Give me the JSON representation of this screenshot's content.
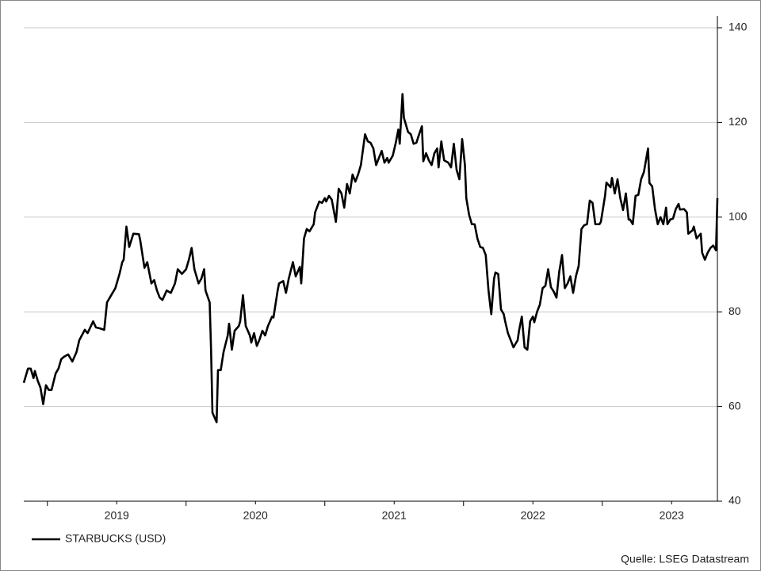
{
  "chart_data": {
    "type": "line",
    "source": "Quelle: LSEG Datastream",
    "legend": "bottom-left",
    "xlim": [
      2018.83,
      2023.83
    ],
    "xticks": [
      {
        "value": 2019.5,
        "label": "2019"
      },
      {
        "value": 2020.5,
        "label": "2020"
      },
      {
        "value": 2021.5,
        "label": "2021"
      },
      {
        "value": 2022.5,
        "label": "2022"
      },
      {
        "value": 2023.5,
        "label": "2023"
      }
    ],
    "ylim": [
      40,
      140
    ],
    "yticks": [
      40,
      60,
      80,
      100,
      120,
      140
    ],
    "grid": true,
    "x": [
      2018.83,
      2018.86,
      2018.88,
      2018.9,
      2018.91,
      2018.93,
      2018.95,
      2018.97,
      2018.99,
      2019.01,
      2019.03,
      2019.06,
      2019.08,
      2019.1,
      2019.12,
      2019.15,
      2019.18,
      2019.21,
      2019.23,
      2019.27,
      2019.29,
      2019.33,
      2019.35,
      2019.38,
      2019.41,
      2019.43,
      2019.46,
      2019.49,
      2019.52,
      2019.54,
      2019.55,
      2019.57,
      2019.59,
      2019.62,
      2019.66,
      2019.67,
      2019.7,
      2019.72,
      2019.75,
      2019.77,
      2019.79,
      2019.81,
      2019.83,
      2019.86,
      2019.89,
      2019.92,
      2019.94,
      2019.97,
      2020.0,
      2020.02,
      2020.04,
      2020.06,
      2020.09,
      2020.11,
      2020.13,
      2020.14,
      2020.17,
      2020.18,
      2020.19,
      2020.22,
      2020.23,
      2020.25,
      2020.27,
      2020.3,
      2020.31,
      2020.33,
      2020.35,
      2020.38,
      2020.39,
      2020.41,
      2020.43,
      2020.46,
      2020.47,
      2020.49,
      2020.51,
      2020.53,
      2020.55,
      2020.57,
      2020.59,
      2020.62,
      2020.63,
      2020.66,
      2020.67,
      2020.7,
      2020.72,
      2020.74,
      2020.77,
      2020.79,
      2020.82,
      2020.83,
      2020.85,
      2020.87,
      2020.89,
      2020.92,
      2020.93,
      2020.96,
      2020.98,
      2021.0,
      2021.01,
      2021.03,
      2021.05,
      2021.08,
      2021.1,
      2021.12,
      2021.14,
      2021.16,
      2021.18,
      2021.2,
      2021.22,
      2021.24,
      2021.26,
      2021.29,
      2021.31,
      2021.33,
      2021.35,
      2021.37,
      2021.39,
      2021.41,
      2021.43,
      2021.45,
      2021.46,
      2021.49,
      2021.51,
      2021.53,
      2021.54,
      2021.56,
      2021.57,
      2021.6,
      2021.62,
      2021.64,
      2021.66,
      2021.68,
      2021.7,
      2021.71,
      2021.73,
      2021.75,
      2021.77,
      2021.79,
      2021.81,
      2021.82,
      2021.84,
      2021.86,
      2021.89,
      2021.91,
      2021.93,
      2021.95,
      2021.97,
      2021.99,
      2022.01,
      2022.02,
      2022.04,
      2022.06,
      2022.08,
      2022.1,
      2022.12,
      2022.14,
      2022.16,
      2022.18,
      2022.2,
      2022.22,
      2022.23,
      2022.25,
      2022.27,
      2022.29,
      2022.3,
      2022.32,
      2022.34,
      2022.36,
      2022.39,
      2022.4,
      2022.42,
      2022.44,
      2022.46,
      2022.48,
      2022.5,
      2022.51,
      2022.53,
      2022.55,
      2022.57,
      2022.59,
      2022.61,
      2022.63,
      2022.65,
      2022.67,
      2022.69,
      2022.71,
      2022.73,
      2022.75,
      2022.77,
      2022.79,
      2022.81,
      2022.83,
      2022.85,
      2022.87,
      2022.89,
      2022.91,
      2022.93,
      2022.95,
      2022.98,
      2022.99,
      2023.02,
      2023.03,
      2023.06,
      2023.07,
      2023.09,
      2023.11,
      2023.13,
      2023.15,
      2023.17,
      2023.19,
      2023.2,
      2023.22,
      2023.24,
      2023.26,
      2023.28,
      2023.3,
      2023.33,
      2023.34,
      2023.36,
      2023.38,
      2023.4,
      2023.42,
      2023.44,
      2023.46,
      2023.47,
      2023.49,
      2023.51,
      2023.53,
      2023.55,
      2023.56,
      2023.59,
      2023.61,
      2023.62,
      2023.65,
      2023.66,
      2023.68,
      2023.71,
      2023.72,
      2023.74,
      2023.76,
      2023.78,
      2023.8,
      2023.82,
      2023.83
    ],
    "series": [
      {
        "name": "STARBUCKS (USD)",
        "color": "#000000",
        "values": [
          65,
          68,
          68,
          66,
          67.5,
          65.5,
          64,
          60.5,
          64.5,
          63.5,
          63.5,
          67,
          68,
          70,
          70.5,
          71,
          69.5,
          71.5,
          74,
          76.2,
          75.5,
          78,
          76.7,
          76.5,
          76.2,
          82,
          83.5,
          85,
          88,
          90.5,
          91,
          98,
          93.7,
          96.5,
          96.4,
          95,
          89.3,
          90.5,
          86,
          86.7,
          84.5,
          83,
          82.5,
          84.5,
          84,
          86,
          89,
          88,
          89,
          91,
          93.5,
          89,
          86,
          87,
          89,
          84.5,
          82,
          72,
          58.7,
          56.7,
          67.7,
          67.7,
          71.5,
          75,
          77.5,
          72,
          76,
          77,
          78,
          83.5,
          77,
          75,
          73.5,
          75.5,
          72.8,
          74.2,
          76,
          75,
          77,
          79,
          78.8,
          84.5,
          86,
          86.5,
          84,
          87,
          90.5,
          87.5,
          89.5,
          86,
          95.5,
          97.5,
          97,
          98.5,
          101,
          103.3,
          103,
          104,
          103.3,
          104.5,
          103.7,
          99,
          106,
          105,
          102,
          107,
          105,
          109,
          107.5,
          109,
          111,
          117.5,
          116,
          115.7,
          114.5,
          111,
          112.5,
          114,
          111.5,
          112.5,
          111.5,
          113,
          115.5,
          118.5,
          115.5,
          126,
          121,
          118,
          117.5,
          115.5,
          115.7,
          117.5,
          119.2,
          111.8,
          113.5,
          112,
          111,
          113.5,
          114.5,
          110.5,
          116,
          112,
          111.5,
          110.5,
          115.5,
          110,
          108,
          116.5,
          111,
          104,
          100.5,
          98.5,
          98.5,
          95.5,
          93.7,
          93.5,
          92,
          84.5,
          79.5,
          87,
          88.3,
          88,
          80.5,
          79.5,
          78,
          75.5,
          74,
          72.5,
          74,
          76,
          79,
          72.5,
          72,
          78,
          79,
          77.8,
          80,
          81.5,
          85,
          85.5,
          89,
          85.2,
          84.3,
          83,
          88.5,
          92,
          85,
          86,
          87.5,
          84,
          87.5,
          89.7,
          97.5,
          98.3,
          98.5,
          103.5,
          103,
          98.5,
          98.5,
          99,
          104.5,
          107.3,
          106.3,
          108.3,
          105,
          108,
          104,
          101.5,
          105,
          99.5,
          99.5,
          98.5,
          104.5,
          104.7,
          108,
          109.5,
          114.5,
          107.2,
          106.5,
          101.7,
          98.5,
          100,
          98.5,
          102,
          98.5,
          99.5,
          99.7,
          101.7,
          102.8,
          101.6,
          101.7,
          101,
          96.5,
          97.2,
          98,
          95.5,
          96.5,
          92.5,
          91,
          92.5,
          93.5,
          94,
          93,
          104
        ]
      }
    ]
  }
}
